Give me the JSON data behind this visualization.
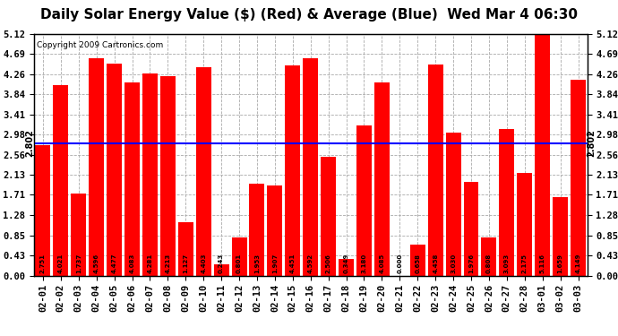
{
  "title": "Daily Solar Energy Value ($) (Red) & Average (Blue)  Wed Mar 4 06:30",
  "copyright": "Copyright 2009 Cartronics.com",
  "bar_color": "#FF0000",
  "average_color": "#0000FF",
  "background_color": "#FFFFFF",
  "plot_bg_color": "#FFFFFF",
  "average_value": 2.802,
  "categories": [
    "02-01",
    "02-02",
    "02-03",
    "02-04",
    "02-05",
    "02-06",
    "02-07",
    "02-08",
    "02-09",
    "02-10",
    "02-11",
    "02-12",
    "02-13",
    "02-14",
    "02-15",
    "02-16",
    "02-17",
    "02-18",
    "02-19",
    "02-20",
    "02-21",
    "02-22",
    "02-23",
    "02-24",
    "02-25",
    "02-26",
    "02-27",
    "02-28",
    "03-01",
    "03-02",
    "03-03"
  ],
  "values": [
    2.751,
    4.021,
    1.737,
    4.596,
    4.477,
    4.083,
    4.281,
    4.213,
    1.127,
    4.403,
    0.243,
    0.801,
    1.953,
    1.907,
    4.451,
    4.592,
    2.506,
    0.349,
    3.18,
    4.085,
    0.0,
    0.658,
    4.458,
    3.03,
    1.976,
    0.808,
    3.093,
    2.175,
    5.116,
    1.659,
    4.149
  ],
  "ylim": [
    0,
    5.12
  ],
  "yticks": [
    0.0,
    0.43,
    0.85,
    1.28,
    1.71,
    2.13,
    2.56,
    2.98,
    3.41,
    3.84,
    4.26,
    4.69,
    5.12
  ],
  "grid_color": "#AAAAAA",
  "left_avg_label": "2.802",
  "right_avg_label": "2.802",
  "value_fontsize": 5.0,
  "tick_fontsize": 7.5,
  "title_fontsize": 11.0,
  "copyright_fontsize": 6.5
}
